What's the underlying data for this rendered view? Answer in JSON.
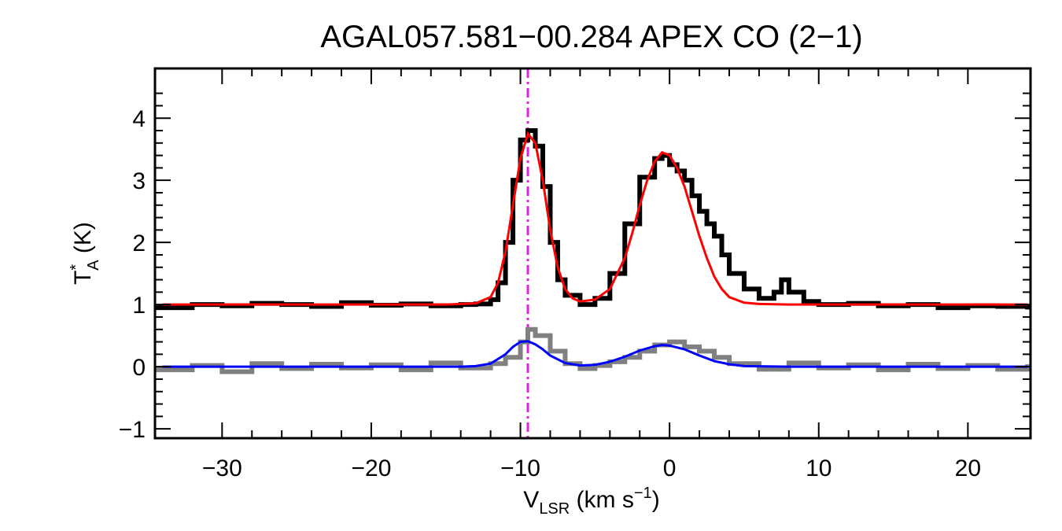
{
  "chart_data": {
    "type": "line",
    "title": "AGAL057.581−00.284  APEX CO (2−1)",
    "xlabel": {
      "main": "V",
      "sub": "LSR",
      "rest": " (km s",
      "sup": "−1",
      "close": ")"
    },
    "ylabel": {
      "main": "T",
      "sup": "*",
      "sub": "A",
      "rest": " (K)"
    },
    "xlim": [
      -34.5,
      24.2
    ],
    "ylim": [
      -1.15,
      4.8
    ],
    "xticks": [
      -30,
      -20,
      -10,
      0,
      10,
      20
    ],
    "xtick_labels": [
      "−30",
      "−20",
      "−10",
      "0",
      "10",
      "20"
    ],
    "yticks": [
      -1,
      0,
      1,
      2,
      3,
      4
    ],
    "ytick_labels": [
      "−1",
      "0",
      "1",
      "2",
      "3",
      "4"
    ],
    "grid": false,
    "reference_line": {
      "x": -9.5,
      "color": "#e020e0",
      "style": "dash-dot"
    },
    "series": [
      {
        "color": "#000000",
        "style": "histogram",
        "offset": 1,
        "x": [
          -34,
          -32,
          -30,
          -28,
          -26,
          -24,
          -22,
          -20,
          -18,
          -16,
          -14,
          -13,
          -12,
          -11.5,
          -11,
          -10.5,
          -10,
          -9.5,
          -9,
          -8.5,
          -8,
          -7.5,
          -7,
          -6,
          -5,
          -4,
          -3,
          -2,
          -1,
          -0.5,
          0,
          0.5,
          1,
          1.5,
          2,
          2.5,
          3,
          3.5,
          4,
          5,
          6,
          7,
          7.5,
          8,
          9,
          10,
          12,
          14,
          16,
          18,
          20,
          22,
          24
        ],
        "values": [
          0.95,
          1.0,
          0.98,
          1.02,
          1.0,
          0.97,
          1.03,
          0.99,
          1.01,
          0.98,
          1.0,
          1.01,
          1.08,
          1.35,
          2.0,
          3.0,
          3.65,
          3.8,
          3.55,
          2.9,
          2.0,
          1.4,
          1.15,
          1.0,
          1.1,
          1.5,
          2.3,
          3.05,
          3.35,
          3.4,
          3.25,
          3.15,
          3.0,
          2.75,
          2.5,
          2.3,
          2.1,
          1.8,
          1.5,
          1.25,
          1.1,
          1.2,
          1.4,
          1.2,
          1.05,
          1.0,
          1.02,
          0.98,
          1.0,
          0.95,
          0.98,
          0.97,
          0.96
        ]
      },
      {
        "color": "#ff0000",
        "style": "line",
        "offset": 1,
        "x": [
          -34,
          -30,
          -25,
          -20,
          -15,
          -13,
          -12,
          -11.5,
          -11,
          -10.5,
          -10,
          -9.5,
          -9,
          -8.5,
          -8,
          -7.5,
          -7,
          -6.5,
          -6,
          -5,
          -4,
          -3,
          -2.5,
          -2,
          -1.5,
          -1,
          -0.5,
          0,
          0.5,
          1,
          1.5,
          2,
          2.5,
          3,
          3.5,
          4,
          5,
          6,
          8,
          10,
          15,
          20,
          24
        ],
        "values": [
          1.0,
          1.0,
          1.0,
          1.0,
          1.0,
          1.02,
          1.12,
          1.35,
          1.85,
          2.6,
          3.35,
          3.75,
          3.6,
          3.0,
          2.2,
          1.6,
          1.25,
          1.1,
          1.05,
          1.08,
          1.25,
          1.75,
          2.15,
          2.6,
          3.0,
          3.3,
          3.45,
          3.4,
          3.2,
          2.9,
          2.5,
          2.1,
          1.75,
          1.45,
          1.25,
          1.12,
          1.03,
          1.01,
          1.0,
          1.0,
          1.0,
          1.0,
          1.0
        ]
      },
      {
        "color": "#808080",
        "style": "histogram",
        "offset": 0,
        "x": [
          -34,
          -32,
          -30,
          -28,
          -26,
          -24,
          -22,
          -20,
          -18,
          -16,
          -14,
          -12,
          -11,
          -10,
          -9.5,
          -9,
          -8,
          -7,
          -6,
          -5,
          -4,
          -3,
          -2,
          -1,
          0,
          1,
          2,
          3,
          4,
          6,
          8,
          10,
          12,
          14,
          16,
          18,
          20,
          22,
          24
        ],
        "values": [
          -0.05,
          0.02,
          -0.08,
          0.05,
          -0.03,
          0.04,
          -0.02,
          0.03,
          -0.05,
          0.06,
          -0.02,
          0.05,
          0.15,
          0.4,
          0.6,
          0.5,
          0.25,
          0.05,
          -0.03,
          0.02,
          0.08,
          0.15,
          0.25,
          0.35,
          0.4,
          0.32,
          0.25,
          0.15,
          0.05,
          -0.04,
          0.06,
          -0.02,
          0.03,
          -0.05,
          0.04,
          -0.03,
          0.02,
          -0.04,
          0.0
        ]
      },
      {
        "color": "#0000ff",
        "style": "line",
        "offset": 0,
        "x": [
          -34,
          -30,
          -20,
          -14,
          -13,
          -12,
          -11,
          -10.5,
          -10,
          -9.5,
          -9,
          -8.5,
          -8,
          -7,
          -6,
          -5,
          -4,
          -3,
          -2,
          -1,
          -0.5,
          0,
          1,
          2,
          3,
          4,
          5,
          8,
          15,
          24
        ],
        "values": [
          0.0,
          0.0,
          0.0,
          0.0,
          0.01,
          0.05,
          0.2,
          0.32,
          0.4,
          0.41,
          0.36,
          0.28,
          0.18,
          0.06,
          0.02,
          0.03,
          0.08,
          0.16,
          0.26,
          0.33,
          0.35,
          0.34,
          0.28,
          0.18,
          0.09,
          0.04,
          0.01,
          0.0,
          0.0,
          0.0
        ]
      }
    ]
  }
}
